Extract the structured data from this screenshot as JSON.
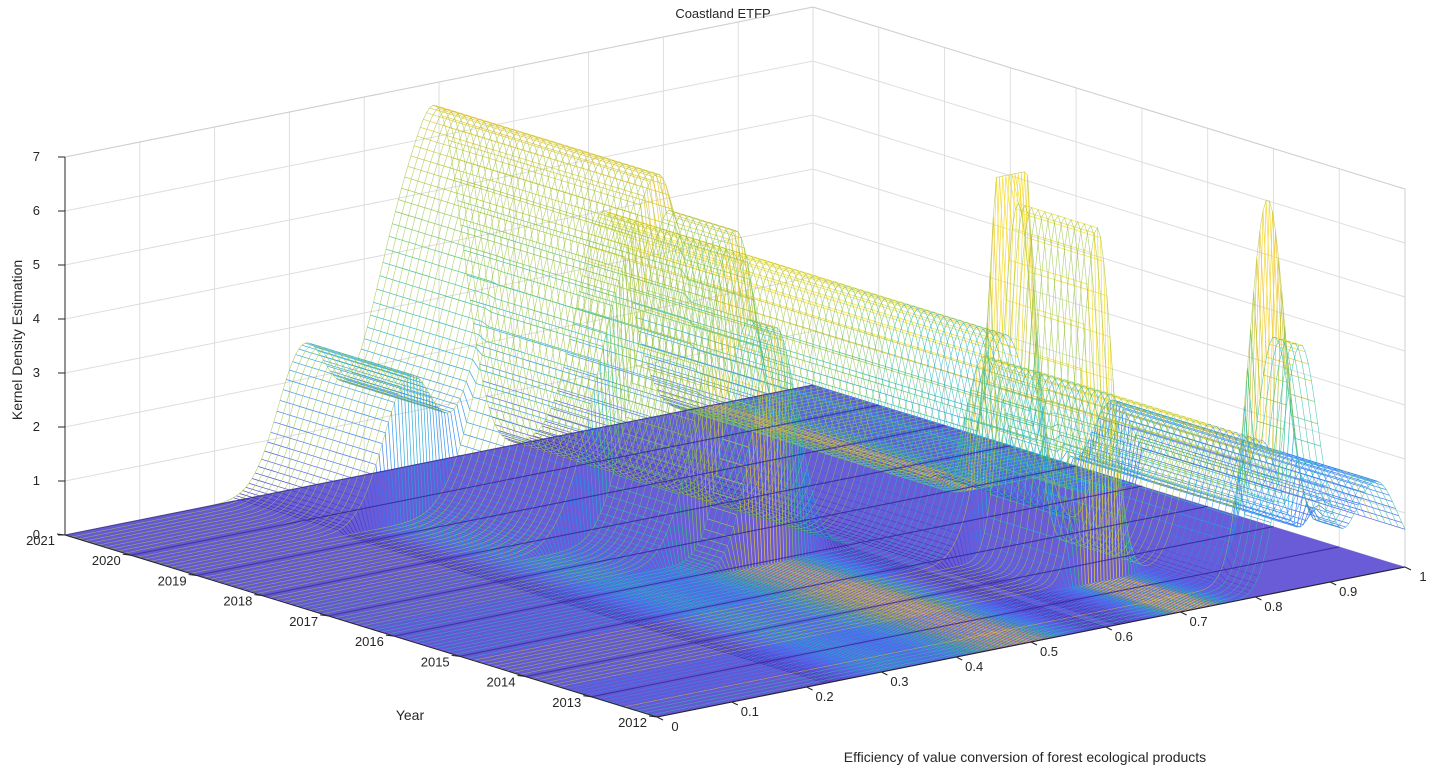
{
  "chart_data": {
    "type": "surface",
    "title": "Coastland ETFP",
    "xlabel": "Efficiency of value conversion of forest ecological products",
    "ylabel": "Year",
    "zlabel": "Kernel Density Estimation",
    "x_ticks": [
      "0",
      "0.1",
      "0.2",
      "0.3",
      "0.4",
      "0.5",
      "0.6",
      "0.7",
      "0.8",
      "0.9",
      "1"
    ],
    "y_ticks": [
      "2012",
      "2013",
      "2014",
      "2015",
      "2016",
      "2017",
      "2018",
      "2019",
      "2020",
      "2021"
    ],
    "z_ticks": [
      "0",
      "1",
      "2",
      "3",
      "4",
      "5",
      "6",
      "7"
    ],
    "xlim": [
      0,
      1
    ],
    "ylim": [
      2012,
      2021
    ],
    "zlim": [
      0,
      7
    ],
    "grid": true,
    "colormap": [
      "#3e26a8",
      "#4a57f0",
      "#2e87f7",
      "#1fb2d4",
      "#3ac28a",
      "#a7c43c",
      "#f4c53a",
      "#f9fb15"
    ],
    "peaks": [
      {
        "x": 0.32,
        "year_start": 2019.4,
        "year_end": 2021.0,
        "height": 2.6,
        "width": 0.035
      },
      {
        "x": 0.43,
        "year_start": 2017.6,
        "year_end": 2021.0,
        "height": 2.6,
        "width": 0.04
      },
      {
        "x": 0.47,
        "year_start": 2016.5,
        "year_end": 2021.0,
        "height": 2.7,
        "width": 0.035
      },
      {
        "x": 0.51,
        "year_start": 2016.0,
        "year_end": 2021.0,
        "height": 4.3,
        "width": 0.03
      },
      {
        "x": 0.72,
        "year_start": 2014.8,
        "year_end": 2021.0,
        "height": 4.0,
        "width": 0.035
      },
      {
        "x": 0.72,
        "year_start": 2013.5,
        "year_end": 2014.8,
        "height": 6.5,
        "width": 0.02
      },
      {
        "x": 0.86,
        "year_start": 2012.5,
        "year_end": 2016.8,
        "height": 2.5,
        "width": 0.025
      },
      {
        "x": 0.86,
        "year_start": 2012.0,
        "year_end": 2012.5,
        "height": 4.5,
        "width": 0.025
      },
      {
        "x": 0.96,
        "year_start": 2012.0,
        "year_end": 2016.0,
        "height": 1.7,
        "width": 0.03
      }
    ]
  }
}
